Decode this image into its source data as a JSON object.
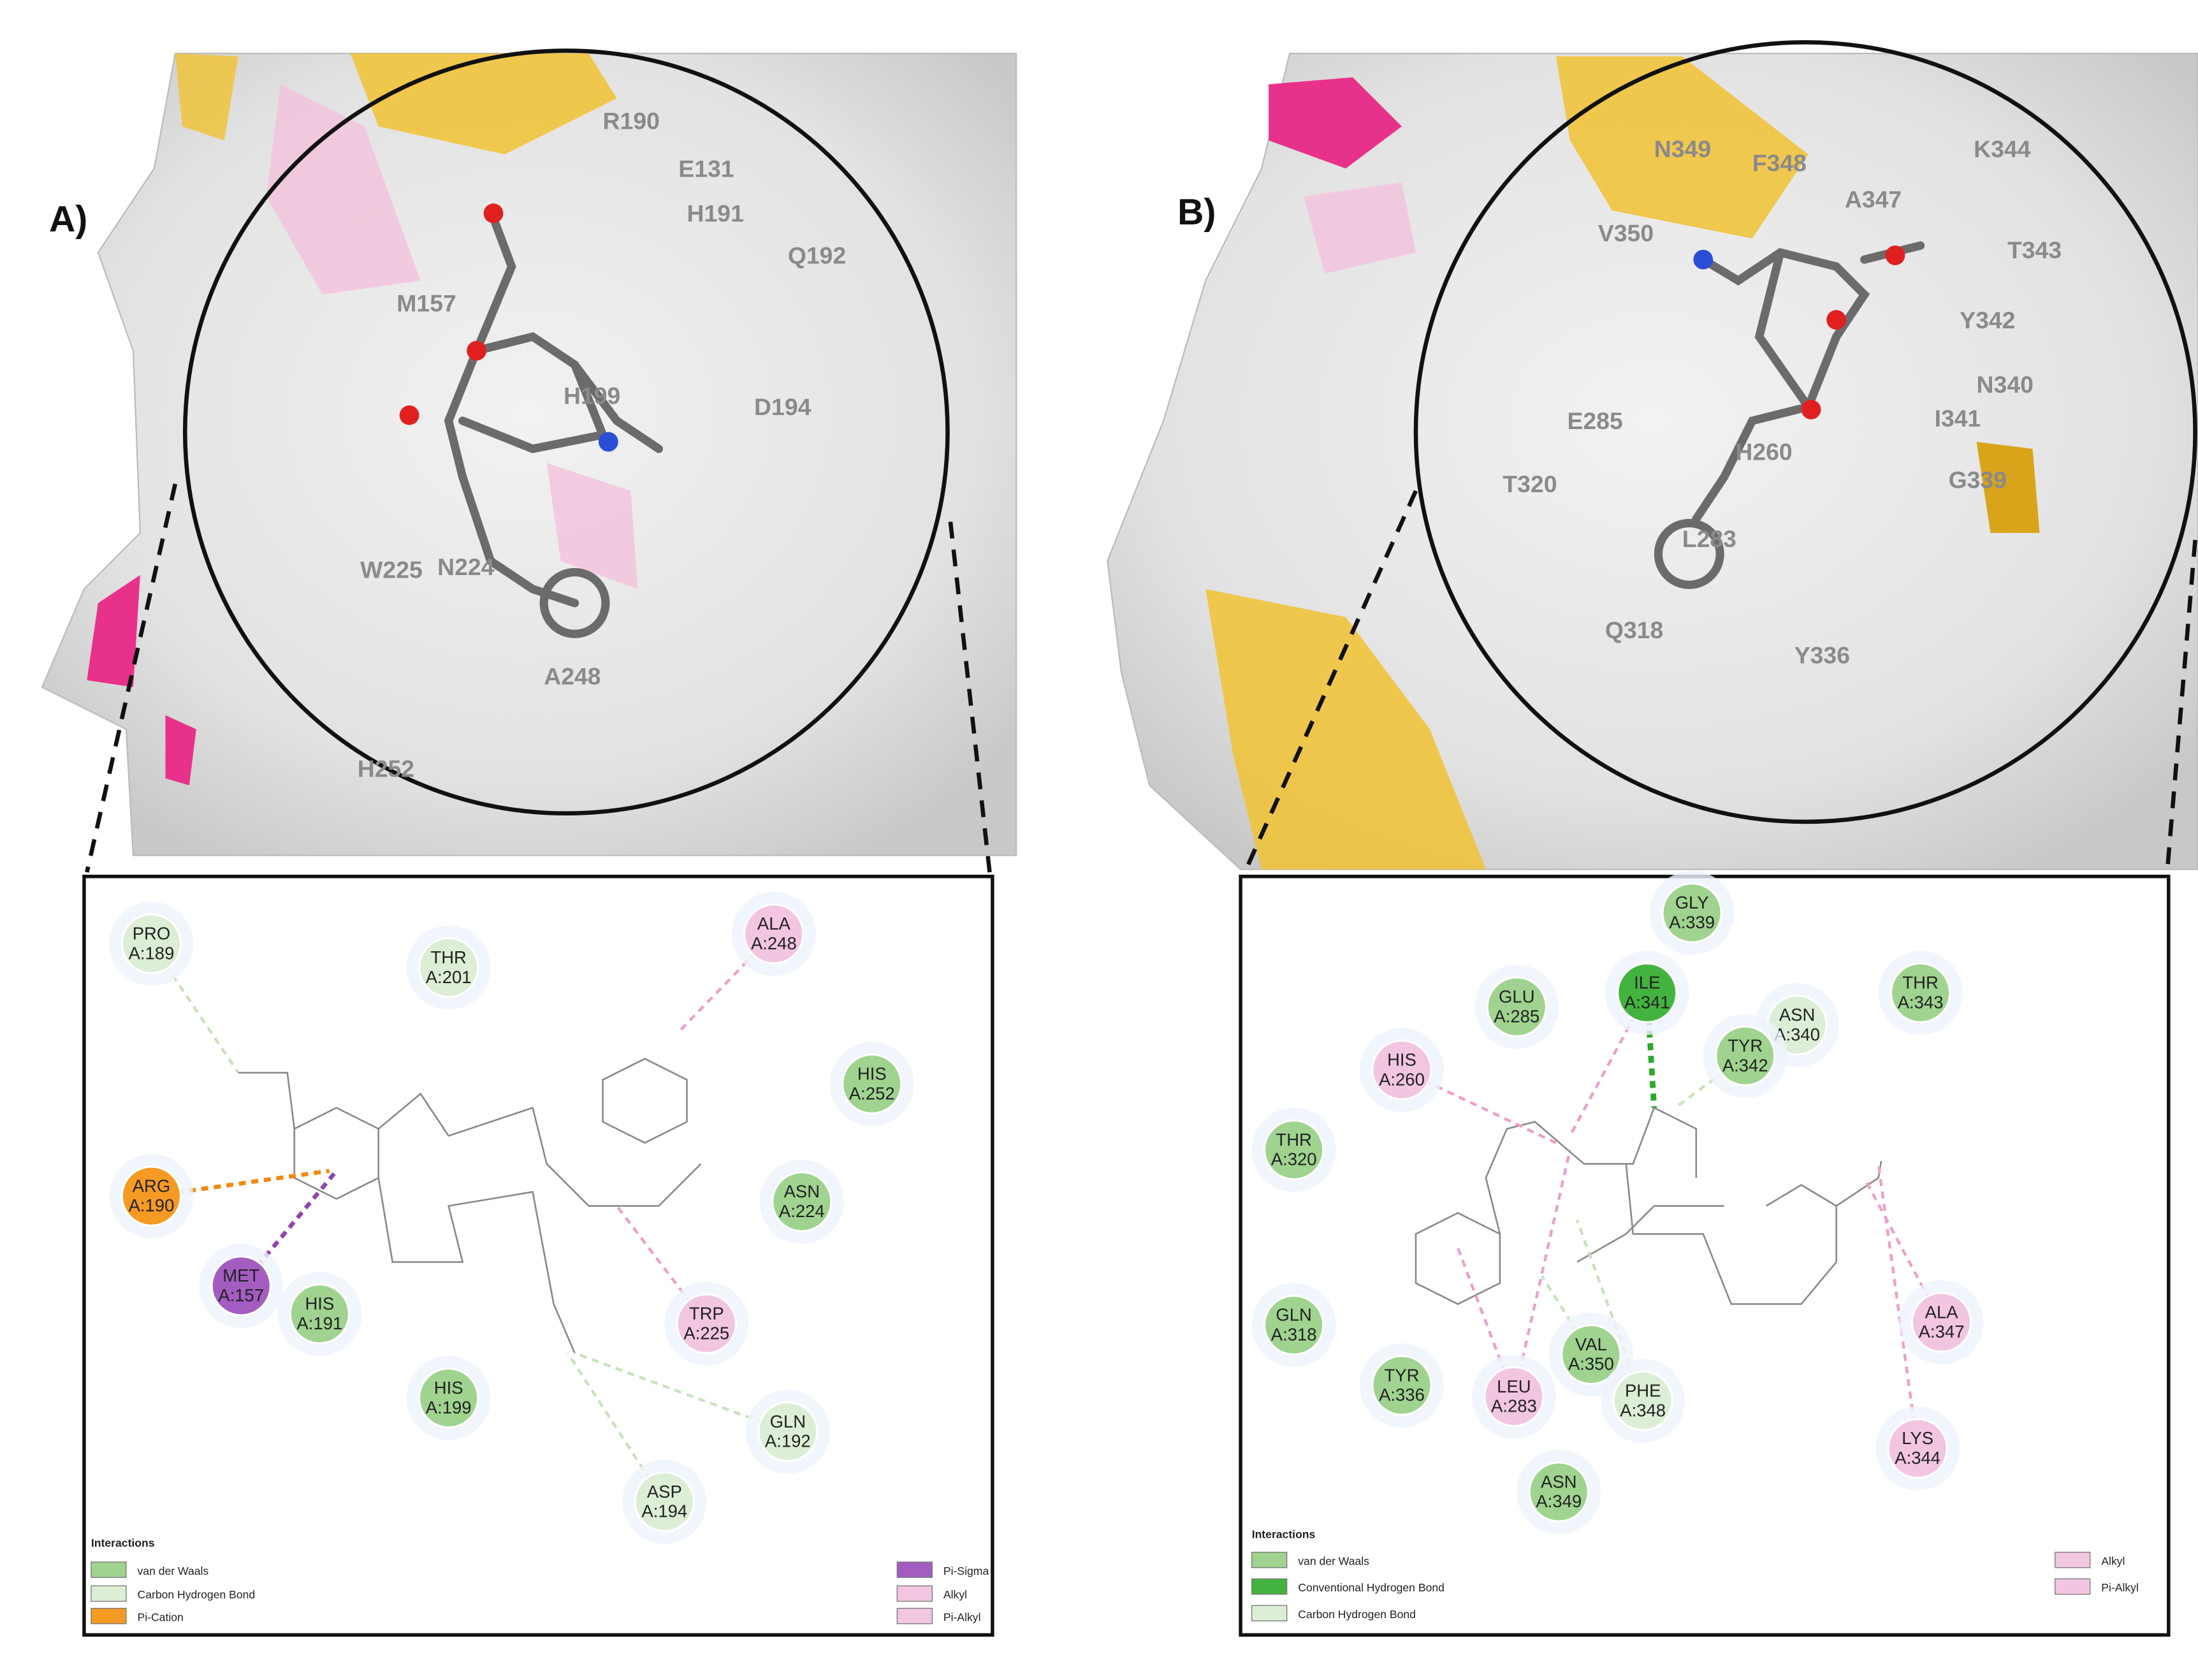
{
  "panels": [
    {
      "label": "A)",
      "surface_labels": [
        "R190",
        "E131",
        "H191",
        "Q192",
        "M157",
        "H199",
        "D194",
        "W225",
        "N224",
        "A248",
        "H252"
      ],
      "residues": [
        {
          "name": "PRO",
          "id": "A:189",
          "color": "#dcefd6"
        },
        {
          "name": "THR",
          "id": "A:201",
          "color": "#dcefd6"
        },
        {
          "name": "ALA",
          "id": "A:248",
          "color": "#f2c6e0"
        },
        {
          "name": "HIS",
          "id": "A:252",
          "color": "#9fd38f"
        },
        {
          "name": "ASN",
          "id": "A:224",
          "color": "#9fd38f"
        },
        {
          "name": "ARG",
          "id": "A:190",
          "color": "#f59a23"
        },
        {
          "name": "MET",
          "id": "A:157",
          "color": "#a35cc0"
        },
        {
          "name": "HIS",
          "id": "A:191",
          "color": "#9fd38f"
        },
        {
          "name": "TRP",
          "id": "A:225",
          "color": "#f2c6e0"
        },
        {
          "name": "HIS",
          "id": "A:199",
          "color": "#9fd38f"
        },
        {
          "name": "GLN",
          "id": "A:192",
          "color": "#dcefd6"
        },
        {
          "name": "ASP",
          "id": "A:194",
          "color": "#dcefd6"
        }
      ],
      "legend": {
        "title": "Interactions",
        "items": [
          {
            "text": "van der Waals",
            "color": "#9fd38f"
          },
          {
            "text": "Carbon Hydrogen Bond",
            "color": "#dcefd6"
          },
          {
            "text": "Pi-Cation",
            "color": "#f59a23"
          },
          {
            "text": "Pi-Sigma",
            "color": "#a35cc0"
          },
          {
            "text": "Alkyl",
            "color": "#f2c6e0"
          },
          {
            "text": "Pi-Alkyl",
            "color": "#f2c6e0"
          }
        ]
      }
    },
    {
      "label": "B)",
      "surface_labels": [
        "N349",
        "F348",
        "A347",
        "K344",
        "V350",
        "T343",
        "Y342",
        "N340",
        "E285",
        "I341",
        "H260",
        "T320",
        "G339",
        "L283",
        "Q318",
        "Y336"
      ],
      "residues": [
        {
          "name": "GLY",
          "id": "A:339",
          "color": "#9fd38f"
        },
        {
          "name": "GLU",
          "id": "A:285",
          "color": "#9fd38f"
        },
        {
          "name": "ILE",
          "id": "A:341",
          "color": "#43b33f"
        },
        {
          "name": "ASN",
          "id": "A:340",
          "color": "#dcefd6"
        },
        {
          "name": "THR",
          "id": "A:343",
          "color": "#9fd38f"
        },
        {
          "name": "HIS",
          "id": "A:260",
          "color": "#f2c6e0"
        },
        {
          "name": "TYR",
          "id": "A:342",
          "color": "#9fd38f"
        },
        {
          "name": "THR",
          "id": "A:320",
          "color": "#9fd38f"
        },
        {
          "name": "GLN",
          "id": "A:318",
          "color": "#9fd38f"
        },
        {
          "name": "TYR",
          "id": "A:336",
          "color": "#9fd38f"
        },
        {
          "name": "LEU",
          "id": "A:283",
          "color": "#f2c6e0"
        },
        {
          "name": "VAL",
          "id": "A:350",
          "color": "#9fd38f"
        },
        {
          "name": "PHE",
          "id": "A:348",
          "color": "#dcefd6"
        },
        {
          "name": "ALA",
          "id": "A:347",
          "color": "#f2c6e0"
        },
        {
          "name": "LYS",
          "id": "A:344",
          "color": "#f2c6e0"
        },
        {
          "name": "ASN",
          "id": "A:349",
          "color": "#9fd38f"
        }
      ],
      "legend": {
        "title": "Interactions",
        "items": [
          {
            "text": "van der Waals",
            "color": "#9fd38f"
          },
          {
            "text": "Conventional Hydrogen Bond",
            "color": "#43b33f"
          },
          {
            "text": "Carbon Hydrogen Bond",
            "color": "#dcefd6"
          },
          {
            "text": "Alkyl",
            "color": "#f2c6e0"
          },
          {
            "text": "Pi-Alkyl",
            "color": "#f2c6e0"
          }
        ]
      }
    }
  ]
}
